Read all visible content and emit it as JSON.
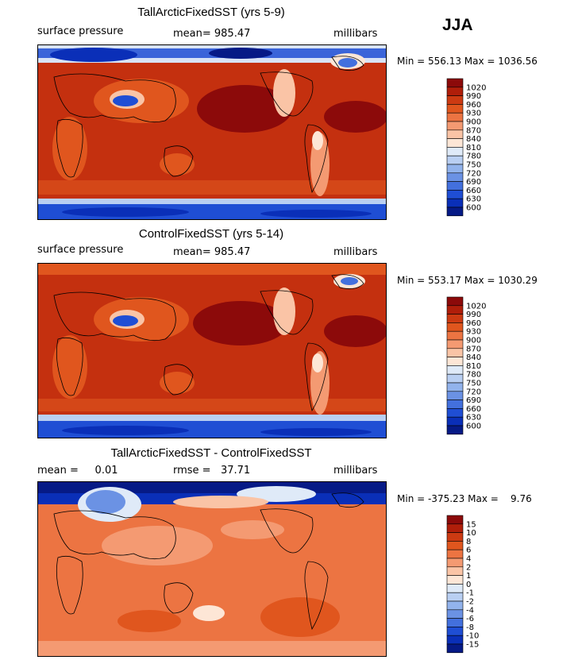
{
  "season": "JJA",
  "panels": [
    {
      "title": "TallArcticFixedSST (yrs 5-9)",
      "left_label": "surface pressure",
      "mean_label": "mean= 985.47",
      "units": "millibars",
      "minmax": "Min = 556.13 Max = 1036.56",
      "colorbar": [
        "1020",
        "990",
        "960",
        "930",
        "900",
        "870",
        "840",
        "810",
        "780",
        "750",
        "720",
        "690",
        "660",
        "630",
        "600"
      ]
    },
    {
      "title": "ControlFixedSST (yrs 5-14)",
      "left_label": "surface pressure",
      "mean_label": "mean= 985.47",
      "units": "millibars",
      "minmax": "Min = 553.17 Max = 1030.29",
      "colorbar": [
        "1020",
        "990",
        "960",
        "930",
        "900",
        "870",
        "840",
        "810",
        "780",
        "750",
        "720",
        "690",
        "660",
        "630",
        "600"
      ]
    },
    {
      "title": "TallArcticFixedSST - ControlFixedSST",
      "left_label": "mean =     0.01",
      "mean_label": "rmse =   37.71",
      "units": "millibars",
      "minmax": "Min = -375.23 Max =    9.76",
      "colorbar": [
        "15",
        "10",
        "8",
        "6",
        "4",
        "2",
        "1",
        "0",
        "-1",
        "-2",
        "-4",
        "-6",
        "-8",
        "-10",
        "-15"
      ]
    }
  ],
  "chart_data": [
    {
      "type": "heatmap",
      "title": "TallArcticFixedSST (yrs 5-9)",
      "variable": "surface pressure",
      "units": "millibars",
      "mean": 985.47,
      "min": 556.13,
      "max": 1036.56,
      "levels": [
        1020,
        990,
        960,
        930,
        900,
        870,
        840,
        810,
        780,
        750,
        720,
        690,
        660,
        630,
        600
      ],
      "colors": [
        "#8c0a0a",
        "#b01e0a",
        "#cc3a12",
        "#e0561e",
        "#ec7442",
        "#f49a72",
        "#fac4a6",
        "#fde6d6",
        "#dfeaf8",
        "#b9cff2",
        "#92b3ec",
        "#6b92e4",
        "#4370dd",
        "#1f4ed4",
        "#0a2fb8",
        "#061a86"
      ]
    },
    {
      "type": "heatmap",
      "title": "ControlFixedSST (yrs 5-14)",
      "variable": "surface pressure",
      "units": "millibars",
      "mean": 985.47,
      "min": 553.17,
      "max": 1030.29,
      "levels": [
        1020,
        990,
        960,
        930,
        900,
        870,
        840,
        810,
        780,
        750,
        720,
        690,
        660,
        630,
        600
      ],
      "colors": [
        "#8c0a0a",
        "#b01e0a",
        "#cc3a12",
        "#e0561e",
        "#ec7442",
        "#f49a72",
        "#fac4a6",
        "#fde6d6",
        "#dfeaf8",
        "#b9cff2",
        "#92b3ec",
        "#6b92e4",
        "#4370dd",
        "#1f4ed4",
        "#0a2fb8",
        "#061a86"
      ]
    },
    {
      "type": "heatmap",
      "title": "TallArcticFixedSST - ControlFixedSST",
      "units": "millibars",
      "mean": 0.01,
      "rmse": 37.71,
      "min": -375.23,
      "max": 9.76,
      "levels": [
        15,
        10,
        8,
        6,
        4,
        2,
        1,
        0,
        -1,
        -2,
        -4,
        -6,
        -8,
        -10,
        -15
      ],
      "colors": [
        "#8c0a0a",
        "#b01e0a",
        "#cc3a12",
        "#e0561e",
        "#ec7442",
        "#f49a72",
        "#fac4a6",
        "#fde6d6",
        "#dfeaf8",
        "#b9cff2",
        "#92b3ec",
        "#6b92e4",
        "#4370dd",
        "#1f4ed4",
        "#0a2fb8",
        "#061a86"
      ]
    }
  ]
}
